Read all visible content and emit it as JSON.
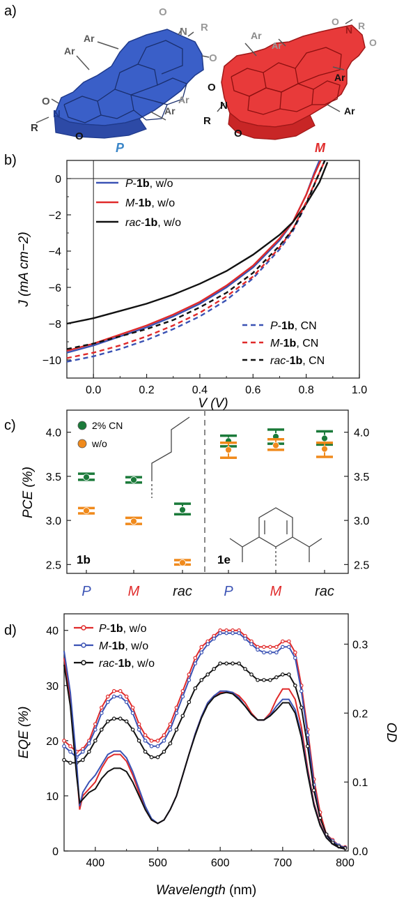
{
  "colors": {
    "blue": "#3a52b4",
    "red": "#e02a2a",
    "black": "#111111",
    "green": "#1b7a3a",
    "orange": "#f08a1c",
    "gray": "#888888"
  },
  "panel_a": {
    "label": "a)",
    "molecule_P": {
      "name": "P",
      "substituents": {
        "ar": "Ar",
        "r": "R",
        "o": "O",
        "n": "N"
      }
    },
    "molecule_M": {
      "name": "M",
      "substituents": {
        "ar": "Ar",
        "r": "R",
        "o": "O",
        "n": "N"
      }
    }
  },
  "chart_data": [
    {
      "panel": "b)",
      "type": "line",
      "xlabel": "V (V)",
      "ylabel": "J (mA cm−2)",
      "xlim": [
        -0.1,
        1.0
      ],
      "ylim": [
        -11,
        1
      ],
      "x_ticks": [
        "0.0",
        "0.2",
        "0.4",
        "0.6",
        "0.8",
        "1.0"
      ],
      "y_ticks": [
        "0",
        "−2",
        "−4",
        "−6",
        "−8",
        "−10"
      ],
      "grid": false,
      "legend_placement": [
        "top-left",
        "bottom-right"
      ],
      "series": [
        {
          "name": "P-1b, w/o",
          "style": "solid",
          "color": "#3a52b4",
          "x": [
            -0.1,
            0,
            0.1,
            0.2,
            0.3,
            0.4,
            0.5,
            0.6,
            0.7,
            0.75,
            0.8,
            0.83,
            0.85
          ],
          "y": [
            -9.6,
            -9.2,
            -8.7,
            -8.2,
            -7.6,
            -6.9,
            -6.0,
            -4.9,
            -3.4,
            -2.4,
            -0.9,
            0.3,
            1.2
          ]
        },
        {
          "name": "M-1b, w/o",
          "style": "solid",
          "color": "#e02a2a",
          "x": [
            -0.1,
            0,
            0.1,
            0.2,
            0.3,
            0.4,
            0.5,
            0.6,
            0.7,
            0.75,
            0.8,
            0.83,
            0.855
          ],
          "y": [
            -9.5,
            -9.1,
            -8.6,
            -8.1,
            -7.5,
            -6.8,
            -5.9,
            -4.8,
            -3.3,
            -2.4,
            -0.9,
            0.2,
            1.2
          ]
        },
        {
          "name": "rac-1b, w/o",
          "style": "solid",
          "color": "#111111",
          "x": [
            -0.1,
            0,
            0.1,
            0.2,
            0.3,
            0.4,
            0.5,
            0.6,
            0.7,
            0.75,
            0.8,
            0.85,
            0.88
          ],
          "y": [
            -8.0,
            -7.7,
            -7.3,
            -6.9,
            -6.4,
            -5.8,
            -5.1,
            -4.2,
            -3.1,
            -2.4,
            -1.4,
            -0.2,
            0.9
          ]
        },
        {
          "name": "P-1b, CN",
          "style": "dashed",
          "color": "#3a52b4",
          "x": [
            -0.1,
            0,
            0.1,
            0.2,
            0.3,
            0.4,
            0.5,
            0.6,
            0.7,
            0.75,
            0.8,
            0.84,
            0.87
          ],
          "y": [
            -10.1,
            -9.8,
            -9.4,
            -8.9,
            -8.3,
            -7.6,
            -6.7,
            -5.5,
            -3.9,
            -2.9,
            -1.4,
            0.0,
            1.2
          ]
        },
        {
          "name": "M-1b, CN",
          "style": "dashed",
          "color": "#e02a2a",
          "x": [
            -0.1,
            0,
            0.1,
            0.2,
            0.3,
            0.4,
            0.5,
            0.6,
            0.7,
            0.75,
            0.8,
            0.84,
            0.87
          ],
          "y": [
            -9.9,
            -9.6,
            -9.2,
            -8.7,
            -8.1,
            -7.4,
            -6.5,
            -5.4,
            -3.8,
            -2.8,
            -1.3,
            0.0,
            1.2
          ]
        },
        {
          "name": "rac-1b, CN",
          "style": "dashed",
          "color": "#111111",
          "x": [
            -0.1,
            0,
            0.1,
            0.2,
            0.3,
            0.4,
            0.5,
            0.6,
            0.7,
            0.75,
            0.8,
            0.84,
            0.87
          ],
          "y": [
            -9.4,
            -9.1,
            -8.7,
            -8.3,
            -7.8,
            -7.1,
            -6.3,
            -5.2,
            -3.7,
            -2.8,
            -1.4,
            0.0,
            1.2
          ]
        }
      ],
      "legend_solid": [
        {
          "prefix": "P",
          "mid": "-",
          "bold": "1b",
          "suffix": ", w/o",
          "color": "#3a52b4",
          "style": "solid"
        },
        {
          "prefix": "M",
          "mid": "-",
          "bold": "1b",
          "suffix": ", w/o",
          "color": "#e02a2a",
          "style": "solid"
        },
        {
          "prefix": "rac",
          "mid": "-",
          "bold": "1b",
          "suffix": ", w/o",
          "color": "#111111",
          "style": "solid"
        }
      ],
      "legend_dashed": [
        {
          "prefix": "P",
          "mid": "-",
          "bold": "1b",
          "suffix": ", CN",
          "color": "#3a52b4",
          "style": "dashed"
        },
        {
          "prefix": "M",
          "mid": "-",
          "bold": "1b",
          "suffix": ", CN",
          "color": "#e02a2a",
          "style": "dashed"
        },
        {
          "prefix": "rac",
          "mid": "-",
          "bold": "1b",
          "suffix": ", CN",
          "color": "#111111",
          "style": "dashed"
        }
      ]
    },
    {
      "panel": "c)",
      "type": "scatter",
      "ylabel": "PCE (%)",
      "ylim": [
        2.4,
        4.25
      ],
      "y_ticks": [
        "2.5",
        "3.0",
        "3.5",
        "4.0"
      ],
      "categories": [
        "P",
        "M",
        "rac",
        "P",
        "M",
        "rac"
      ],
      "category_colors": [
        "#3a52b4",
        "#e02a2a",
        "#111111",
        "#3a52b4",
        "#e02a2a",
        "#111111"
      ],
      "group_labels": [
        "1b",
        "1e"
      ],
      "legend": [
        {
          "name": "2% CN",
          "color": "#1b7a3a"
        },
        {
          "name": "w/o",
          "color": "#f08a1c"
        }
      ],
      "series": [
        {
          "name": "2% CN",
          "color": "#1b7a3a",
          "values": [
            3.49,
            3.46,
            3.12,
            3.9,
            3.95,
            3.93
          ],
          "err_low": [
            3.46,
            3.43,
            3.07,
            3.84,
            3.87,
            3.86
          ],
          "err_high": [
            3.53,
            3.49,
            3.19,
            3.96,
            4.03,
            4.01
          ]
        },
        {
          "name": "w/o",
          "color": "#f08a1c",
          "values": [
            3.11,
            2.99,
            2.52,
            3.8,
            3.85,
            3.81
          ],
          "err_low": [
            3.08,
            2.96,
            2.5,
            3.71,
            3.8,
            3.72
          ],
          "err_high": [
            3.14,
            3.03,
            2.55,
            3.88,
            3.92,
            3.88
          ]
        }
      ]
    },
    {
      "panel": "d)",
      "type": "line",
      "xlabel": "Wavelength (nm)",
      "ylabel": "EQE (%)",
      "ylabel_right": "OD",
      "xlim": [
        350,
        805
      ],
      "ylim": [
        0,
        43
      ],
      "ylim_right": [
        0,
        0.344
      ],
      "x_ticks": [
        "400",
        "500",
        "600",
        "700",
        "800"
      ],
      "y_ticks": [
        "0",
        "10",
        "20",
        "30",
        "40"
      ],
      "y_ticks_right": [
        "0.0",
        "0.1",
        "0.2",
        "0.3"
      ],
      "legend_placement": "top-left",
      "series": [
        {
          "name": "P-1b, w/o",
          "axis": "left",
          "color": "#e02a2a",
          "x": [
            350,
            360,
            370,
            380,
            390,
            400,
            410,
            420,
            430,
            440,
            450,
            460,
            470,
            480,
            490,
            500,
            510,
            520,
            530,
            540,
            550,
            560,
            570,
            580,
            590,
            600,
            610,
            620,
            630,
            640,
            650,
            660,
            670,
            680,
            690,
            700,
            710,
            720,
            730,
            740,
            750,
            760,
            770,
            780,
            790,
            800
          ],
          "y": [
            20,
            19,
            18,
            18.5,
            20,
            23,
            26,
            28,
            29,
            29,
            28,
            26,
            23,
            21,
            20,
            20,
            21,
            23,
            26,
            29,
            32,
            35,
            37,
            38,
            39,
            40,
            40,
            40,
            40,
            39,
            38,
            37,
            37,
            37,
            37,
            38,
            38,
            36,
            30,
            22,
            13,
            7,
            3,
            2,
            1,
            0.7
          ]
        },
        {
          "name": "M-1b, w/o",
          "axis": "left",
          "color": "#3a52b4",
          "x": [
            350,
            360,
            370,
            380,
            390,
            400,
            410,
            420,
            430,
            440,
            450,
            460,
            470,
            480,
            490,
            500,
            510,
            520,
            530,
            540,
            550,
            560,
            570,
            580,
            590,
            600,
            610,
            620,
            630,
            640,
            650,
            660,
            670,
            680,
            690,
            700,
            710,
            720,
            730,
            740,
            750,
            760,
            770,
            780,
            790,
            800
          ],
          "y": [
            19,
            18,
            17,
            18,
            19.5,
            22,
            25,
            27,
            28,
            28,
            27,
            25,
            22,
            20,
            19,
            19,
            20,
            22,
            25,
            28,
            31,
            34,
            36,
            37.5,
            38.5,
            39.5,
            39.5,
            39.5,
            39.5,
            38.5,
            37.5,
            36.5,
            36,
            36,
            36,
            37,
            37,
            35,
            29,
            21,
            12,
            6,
            3,
            1.8,
            1,
            0.6
          ]
        },
        {
          "name": "rac-1b, w/o",
          "axis": "left",
          "color": "#111111",
          "x": [
            350,
            360,
            370,
            380,
            390,
            400,
            410,
            420,
            430,
            440,
            450,
            460,
            470,
            480,
            490,
            500,
            510,
            520,
            530,
            540,
            550,
            560,
            570,
            580,
            590,
            600,
            610,
            620,
            630,
            640,
            650,
            660,
            670,
            680,
            690,
            700,
            710,
            720,
            730,
            740,
            750,
            760,
            770,
            780,
            790,
            800
          ],
          "y": [
            16.5,
            16,
            16,
            16.5,
            18,
            20,
            22,
            23.5,
            24,
            24,
            23.5,
            22,
            20,
            18,
            17,
            17,
            18,
            19.5,
            22,
            24.5,
            27,
            29.5,
            31,
            32,
            33,
            34,
            34,
            34,
            34,
            33,
            32,
            31,
            31,
            31,
            31.5,
            32,
            32,
            30,
            26,
            19,
            11,
            6,
            3,
            1.5,
            0.8,
            0.5
          ]
        },
        {
          "name": "P-1b",
          "axis": "right",
          "color": "#e02a2a",
          "x": [
            350,
            360,
            370,
            375,
            380,
            390,
            400,
            410,
            420,
            430,
            440,
            450,
            460,
            470,
            480,
            490,
            500,
            510,
            520,
            530,
            540,
            550,
            560,
            570,
            580,
            590,
            600,
            610,
            620,
            630,
            640,
            650,
            660,
            670,
            680,
            690,
            700,
            710,
            720,
            730,
            740,
            750,
            760,
            770,
            780,
            790,
            800
          ],
          "y": [
            0.28,
            0.22,
            0.12,
            0.06,
            0.08,
            0.09,
            0.1,
            0.12,
            0.135,
            0.14,
            0.14,
            0.13,
            0.11,
            0.085,
            0.06,
            0.045,
            0.04,
            0.045,
            0.06,
            0.08,
            0.11,
            0.14,
            0.17,
            0.195,
            0.215,
            0.225,
            0.23,
            0.23,
            0.23,
            0.225,
            0.215,
            0.2,
            0.19,
            0.19,
            0.2,
            0.22,
            0.235,
            0.235,
            0.22,
            0.18,
            0.12,
            0.07,
            0.04,
            0.02,
            0.01,
            0.005,
            0.003
          ]
        },
        {
          "name": "M-1b",
          "axis": "right",
          "color": "#3a52b4",
          "x": [
            350,
            360,
            370,
            375,
            380,
            390,
            400,
            410,
            420,
            430,
            440,
            450,
            460,
            470,
            480,
            490,
            500,
            510,
            520,
            530,
            540,
            550,
            560,
            570,
            580,
            590,
            600,
            610,
            620,
            630,
            640,
            650,
            660,
            670,
            680,
            690,
            700,
            710,
            720,
            730,
            740,
            750,
            760,
            770,
            780,
            790,
            800
          ],
          "y": [
            0.29,
            0.23,
            0.13,
            0.065,
            0.085,
            0.1,
            0.11,
            0.125,
            0.14,
            0.145,
            0.145,
            0.135,
            0.115,
            0.09,
            0.065,
            0.047,
            0.04,
            0.045,
            0.06,
            0.08,
            0.11,
            0.14,
            0.17,
            0.195,
            0.215,
            0.225,
            0.232,
            0.232,
            0.23,
            0.222,
            0.21,
            0.198,
            0.19,
            0.19,
            0.197,
            0.21,
            0.22,
            0.22,
            0.205,
            0.17,
            0.115,
            0.068,
            0.038,
            0.02,
            0.01,
            0.005,
            0.003
          ]
        },
        {
          "name": "rac-1b",
          "axis": "right",
          "color": "#111111",
          "x": [
            350,
            360,
            370,
            375,
            380,
            390,
            400,
            410,
            420,
            430,
            440,
            450,
            460,
            470,
            480,
            490,
            500,
            510,
            520,
            530,
            540,
            550,
            560,
            570,
            580,
            590,
            600,
            610,
            620,
            630,
            640,
            650,
            660,
            670,
            680,
            690,
            700,
            710,
            720,
            730,
            740,
            750,
            760,
            770,
            780,
            790,
            800
          ],
          "y": [
            0.27,
            0.21,
            0.11,
            0.07,
            0.075,
            0.085,
            0.09,
            0.105,
            0.115,
            0.12,
            0.12,
            0.115,
            0.1,
            0.08,
            0.06,
            0.045,
            0.04,
            0.045,
            0.06,
            0.08,
            0.11,
            0.14,
            0.168,
            0.193,
            0.212,
            0.223,
            0.228,
            0.23,
            0.228,
            0.22,
            0.21,
            0.198,
            0.19,
            0.19,
            0.196,
            0.205,
            0.215,
            0.215,
            0.2,
            0.165,
            0.112,
            0.066,
            0.037,
            0.019,
            0.01,
            0.005,
            0.003
          ]
        }
      ],
      "legend": [
        {
          "prefix": "P",
          "mid": "-",
          "bold": "1b",
          "suffix": ", w/o",
          "color": "#e02a2a"
        },
        {
          "prefix": "M",
          "mid": "-",
          "bold": "1b",
          "suffix": ", w/o",
          "color": "#3a52b4"
        },
        {
          "prefix": "rac",
          "mid": "-",
          "bold": "1b",
          "suffix": ", w/o",
          "color": "#111111"
        }
      ]
    }
  ]
}
